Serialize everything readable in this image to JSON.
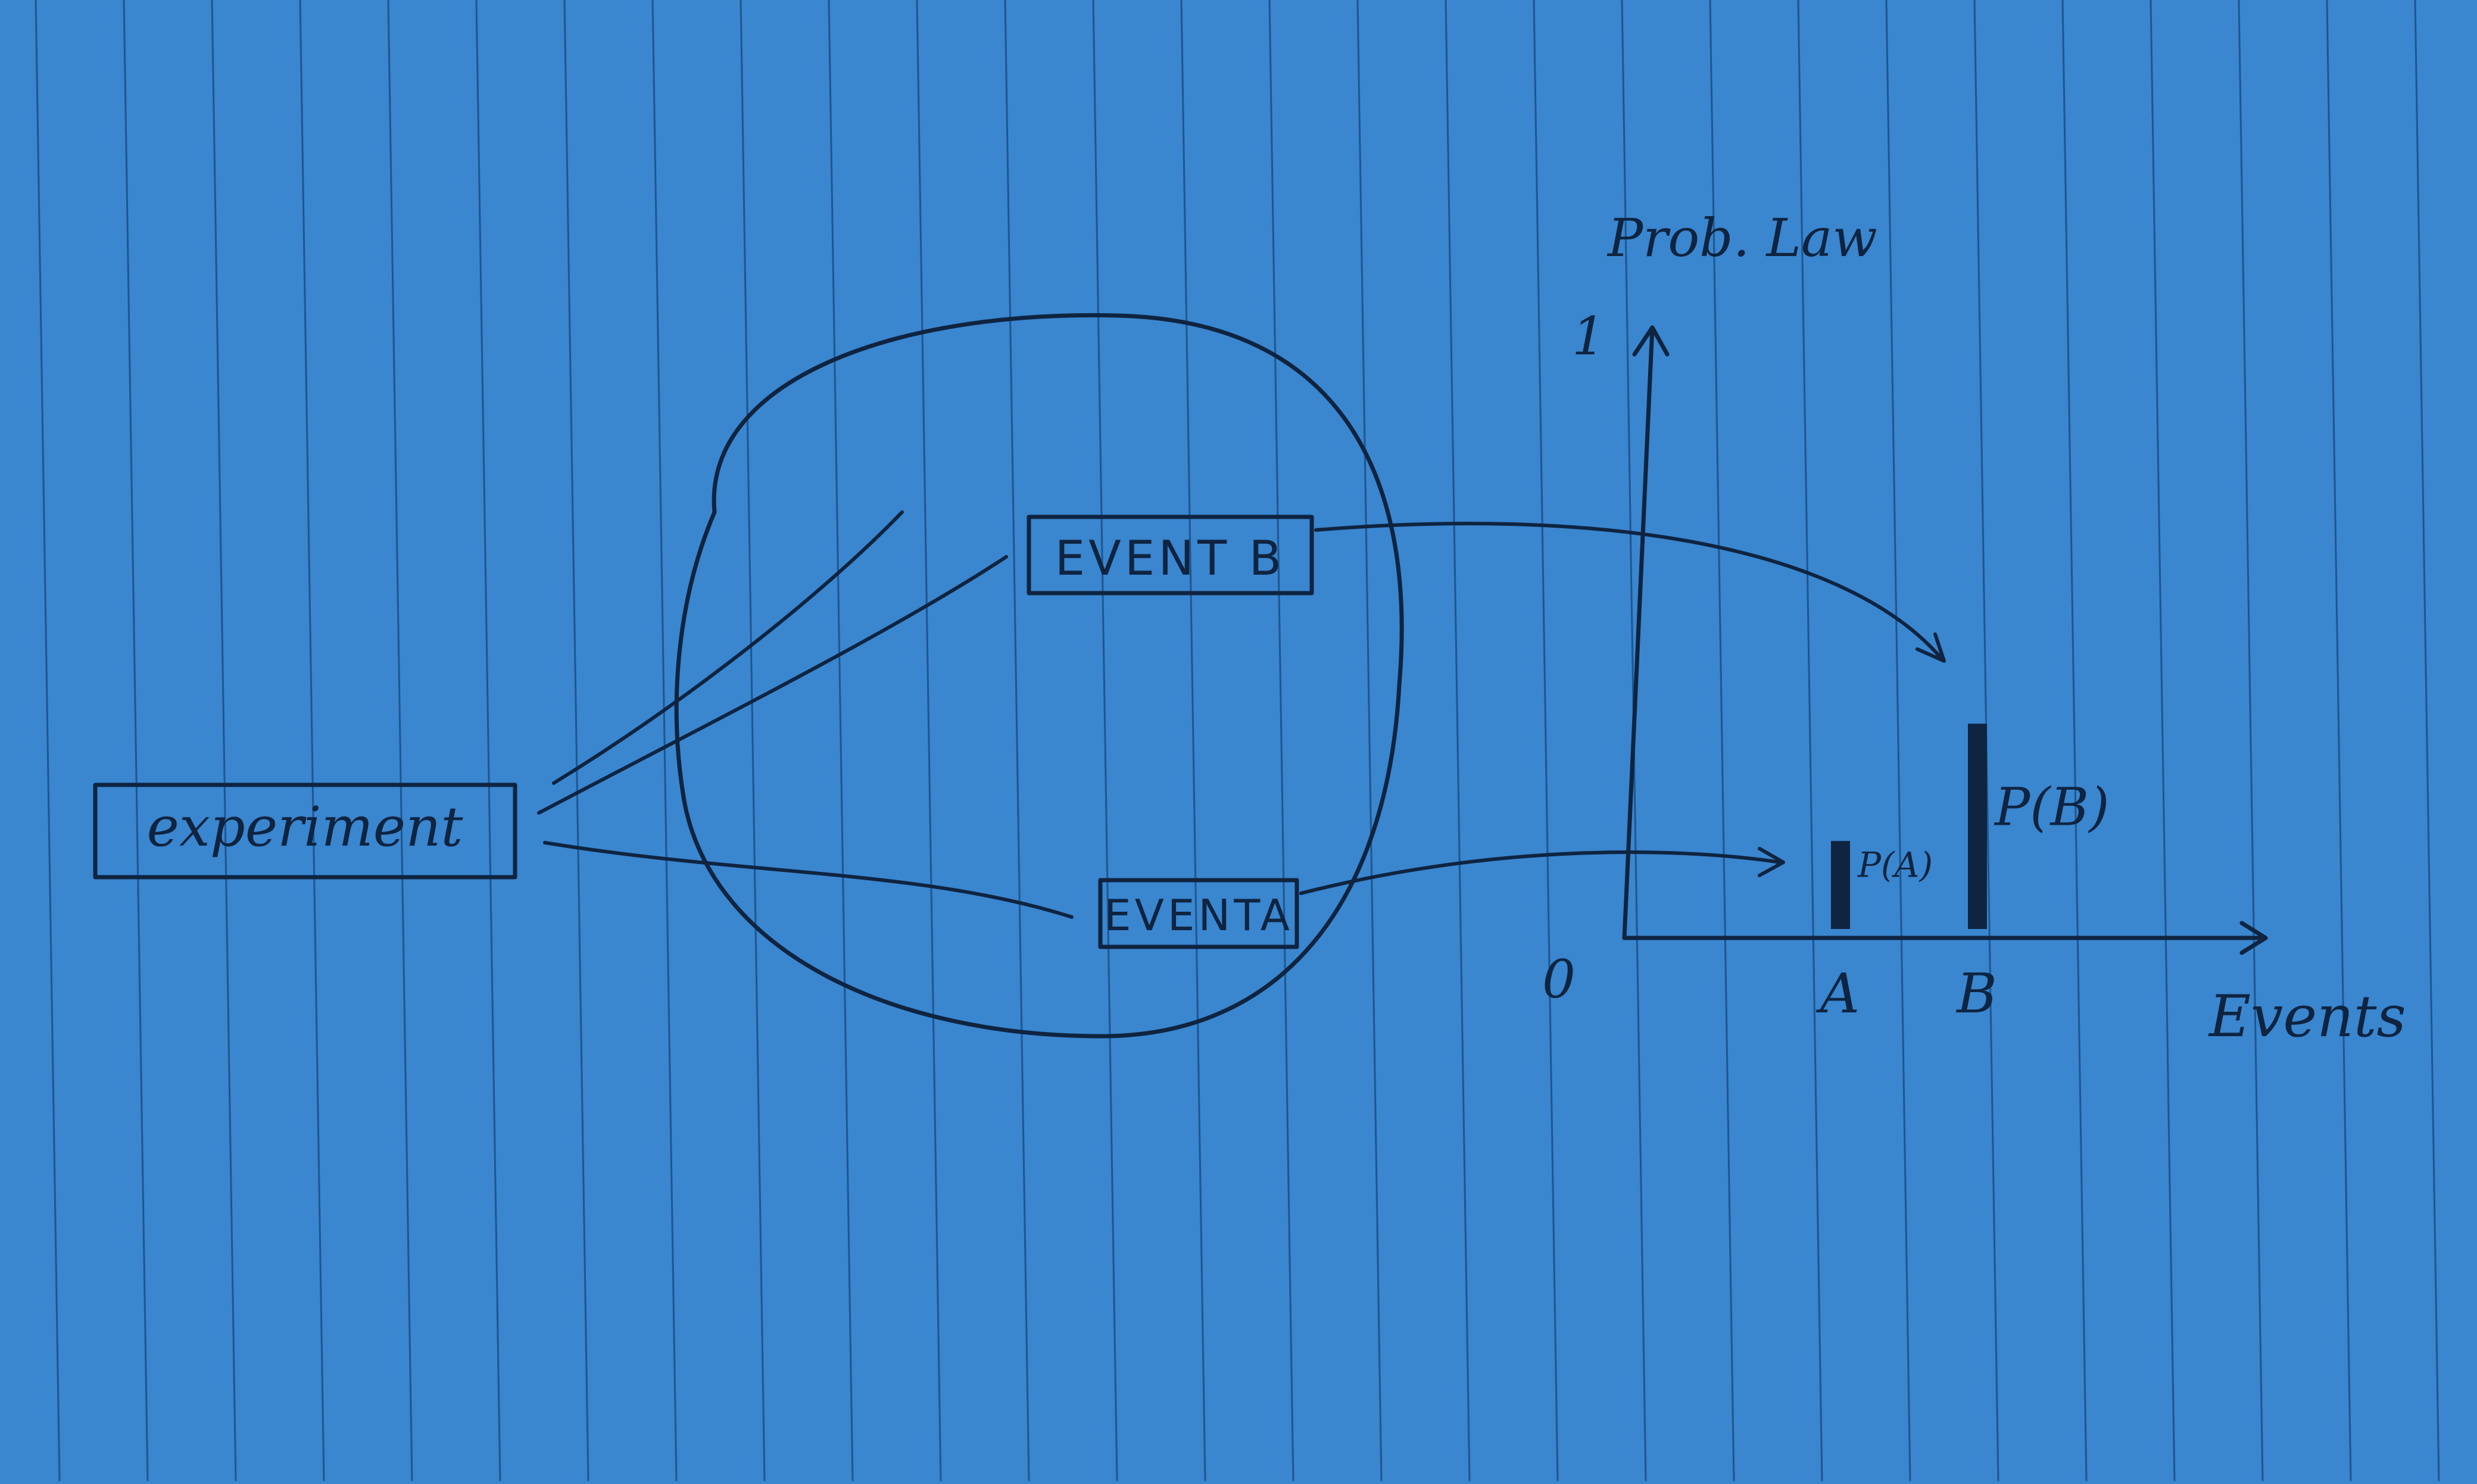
{
  "paper": {
    "background": "#3a86cf",
    "rule_color": "#1d5690",
    "ink_color": "#0f2440"
  },
  "diagram": {
    "experiment_label": "experiment",
    "event_b_label": "EVENT B",
    "event_a_label": "EVENTA"
  },
  "chart_data": {
    "type": "bar",
    "ylabel": "Prob. Law",
    "xlabel": "Events",
    "y_top_tick": "1",
    "origin_label": "0",
    "ylim": [
      0,
      1
    ],
    "categories": [
      "A",
      "B"
    ],
    "values": [
      0.15,
      0.35
    ],
    "data_labels": [
      "P(A)",
      "P(B)"
    ]
  }
}
